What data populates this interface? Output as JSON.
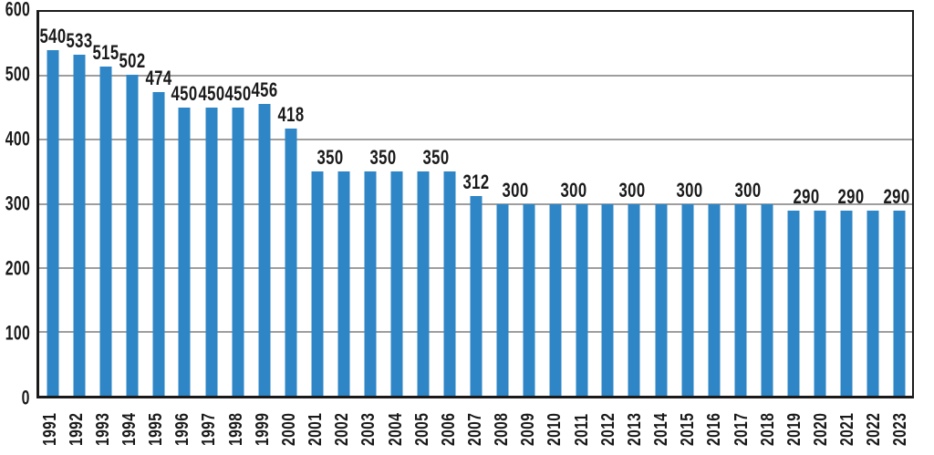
{
  "chart_data": {
    "type": "bar",
    "title": "",
    "xlabel": "",
    "ylabel": "",
    "categories": [
      "1991",
      "1992",
      "1993",
      "1994",
      "1995",
      "1996",
      "1997",
      "1998",
      "1999",
      "2000",
      "2001",
      "2002",
      "2003",
      "2004",
      "2005",
      "2006",
      "2007",
      "2008",
      "2009",
      "2010",
      "2011",
      "2012",
      "2013",
      "2014",
      "2015",
      "2016",
      "2017",
      "2018",
      "2019",
      "2020",
      "2021",
      "2022",
      "2023"
    ],
    "values": [
      540,
      533,
      515,
      502,
      474,
      450,
      450,
      450,
      456,
      418,
      350,
      350,
      350,
      350,
      350,
      350,
      312,
      300,
      300,
      300,
      300,
      300,
      300,
      300,
      300,
      300,
      300,
      300,
      290,
      290,
      290,
      290,
      290
    ],
    "ylim": [
      0,
      600
    ],
    "yticks": [
      0,
      100,
      200,
      300,
      400,
      500,
      600
    ],
    "grid": true,
    "legend": false,
    "bar_color": "#2E86C6",
    "grid_color": "#9E9E9E",
    "axis_color": "#1A1A1A",
    "text_color": "#1A1A1A",
    "value_labels": [
      {
        "text": "540",
        "pos": 0
      },
      {
        "text": "533",
        "pos": 1
      },
      {
        "text": "515",
        "pos": 2
      },
      {
        "text": "502",
        "pos": 3
      },
      {
        "text": "474",
        "pos": 4
      },
      {
        "text": "450",
        "pos": 5
      },
      {
        "text": "450",
        "pos": 6
      },
      {
        "text": "450",
        "pos": 7
      },
      {
        "text": "456",
        "pos": 8
      },
      {
        "text": "418",
        "pos": 9
      },
      {
        "text": "350",
        "pos": 10.5
      },
      {
        "text": "350",
        "pos": 12.5
      },
      {
        "text": "350",
        "pos": 14.5
      },
      {
        "text": "312",
        "pos": 16
      },
      {
        "text": "300",
        "pos": 17.5
      },
      {
        "text": "300",
        "pos": 19.7
      },
      {
        "text": "300",
        "pos": 21.9
      },
      {
        "text": "300",
        "pos": 24.1
      },
      {
        "text": "300",
        "pos": 26.3
      },
      {
        "text": "290",
        "pos": 28.5
      },
      {
        "text": "290",
        "pos": 30.2
      },
      {
        "text": "290",
        "pos": 31.9
      }
    ]
  }
}
